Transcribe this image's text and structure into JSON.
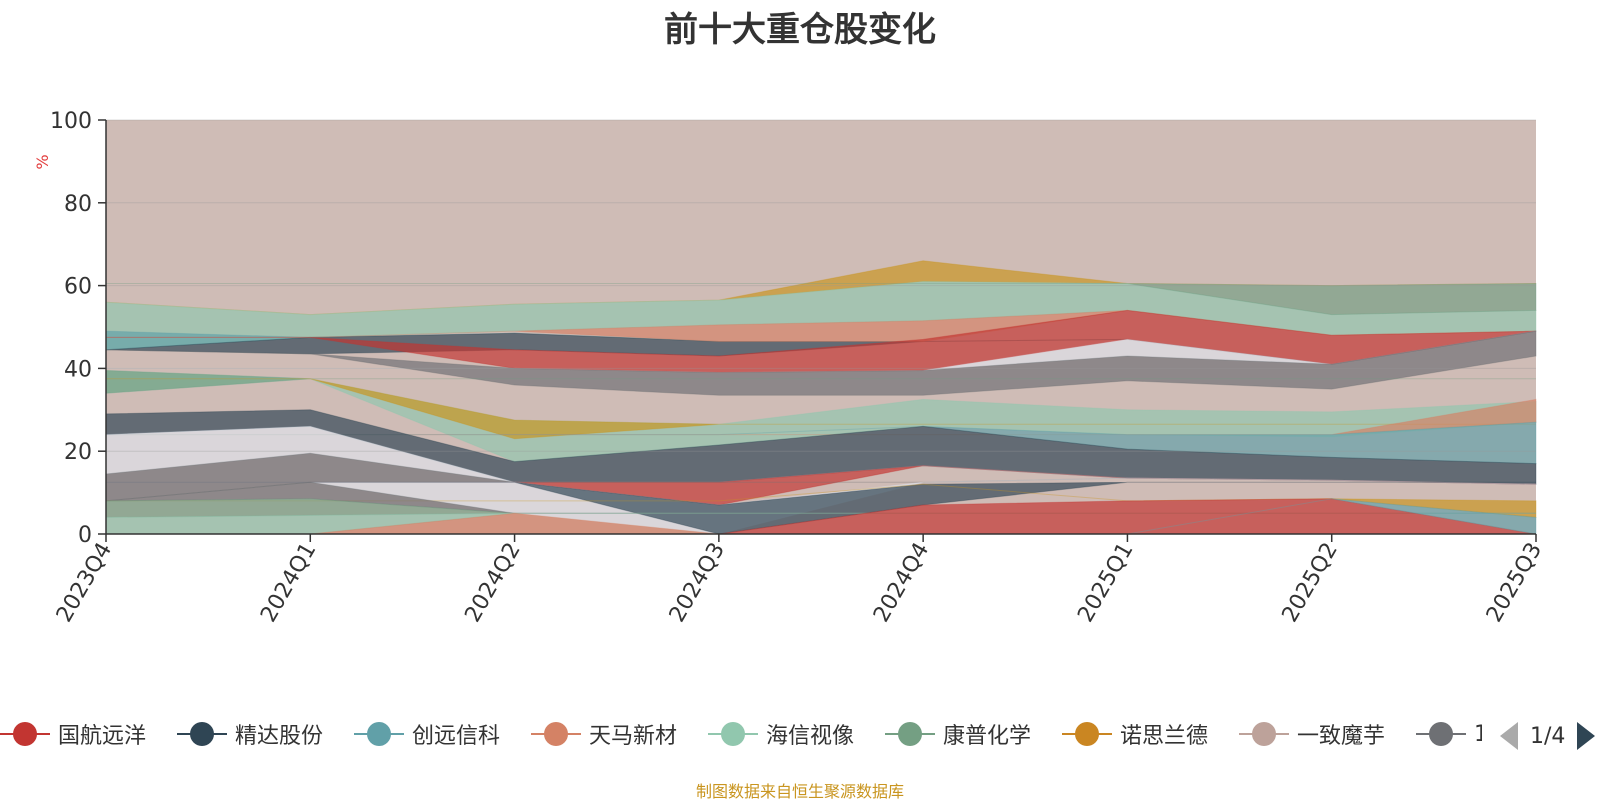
{
  "title": "前十大重仓股变化",
  "footer": "制图数据来自恒生聚源数据库",
  "legend_page": "1/4",
  "legend": [
    {
      "name": "国航远洋",
      "color": "#c23531"
    },
    {
      "name": "精达股份",
      "color": "#2f4554"
    },
    {
      "name": "创远信科",
      "color": "#61a0a8"
    },
    {
      "name": "天马新材",
      "color": "#d48265"
    },
    {
      "name": "海信视像",
      "color": "#91c7ae"
    },
    {
      "name": "康普化学",
      "color": "#749f83"
    },
    {
      "name": "诺思兰德",
      "color": "#ca8622"
    },
    {
      "name": "一致魔芋",
      "color": "#bda29a"
    },
    {
      "name": "1",
      "color": "#6e7074"
    }
  ],
  "chart_data": {
    "type": "area",
    "title": "前十大重仓股变化",
    "ylabel": "%",
    "ylim": [
      0,
      100
    ],
    "yticks": [
      0,
      20,
      40,
      60,
      80,
      100
    ],
    "categories": [
      "2023Q4",
      "2024Q1",
      "2024Q2",
      "2024Q3",
      "2024Q4",
      "2025Q1",
      "2025Q2",
      "2025Q3"
    ],
    "grid": true,
    "background_band": {
      "color": "#bda29a",
      "values": [
        100,
        100,
        100,
        100,
        100,
        100,
        100,
        100
      ]
    },
    "bands": [
      {
        "color": "#c9951f",
        "upper": [
          56,
          53,
          55.5,
          56.5,
          66,
          60.5,
          60,
          60.5
        ],
        "lower": [
          56,
          53,
          55.5,
          56.5,
          61,
          60.5,
          60,
          60.5
        ]
      },
      {
        "color": "#91c7ae",
        "upper": [
          56,
          53,
          55.5,
          56.5,
          61,
          60.5,
          53,
          54
        ],
        "lower": [
          44.5,
          47.5,
          49,
          50.5,
          51.5,
          54,
          48,
          49
        ]
      },
      {
        "color": "#749f83",
        "upper": [
          60.5,
          60.5,
          60.5,
          60.5,
          60.5,
          60.5,
          60,
          60.5
        ],
        "lower": [
          60.5,
          60.5,
          60.5,
          60.5,
          60.5,
          60.5,
          53,
          54
        ]
      },
      {
        "color": "#61a0a8",
        "upper": [
          49,
          47.5,
          48.5,
          46.5,
          46.5,
          47,
          41,
          49
        ],
        "lower": [
          44.5,
          47.5,
          48.5,
          46.5,
          46.5,
          47,
          41,
          49
        ]
      },
      {
        "color": "#2f4554",
        "upper": [
          44.5,
          47.5,
          48.5,
          46.5,
          46.5,
          47,
          41,
          49
        ],
        "lower": [
          44.5,
          43.5,
          44.5,
          43,
          46.5,
          47,
          41,
          49
        ]
      },
      {
        "color": "#d48265",
        "upper": [
          47.5,
          47.5,
          49,
          50.5,
          51.5,
          54,
          48,
          49
        ],
        "lower": [
          47.5,
          47.5,
          49,
          46.5,
          46.5,
          54,
          48,
          49
        ]
      },
      {
        "color": "#c23531",
        "upper": [
          47.5,
          47.5,
          44.5,
          43,
          47,
          54,
          48,
          49
        ],
        "lower": [
          47.5,
          47.5,
          40,
          39,
          39.5,
          47,
          41,
          49
        ]
      },
      {
        "color": "#dfe3ea",
        "upper": [
          40,
          40,
          40,
          39,
          39.5,
          47,
          41,
          49
        ],
        "lower": [
          40,
          40,
          40,
          39,
          39.5,
          43,
          41,
          49
        ]
      },
      {
        "color": "#6e7074",
        "upper": [
          44.5,
          43.5,
          40,
          39,
          39.5,
          43,
          41,
          49
        ],
        "lower": [
          44.5,
          43.5,
          36,
          33.5,
          33.5,
          37,
          35,
          43
        ]
      },
      {
        "color": "#91c7ae",
        "upper": [
          39.5,
          37.5,
          27.5,
          26.5,
          32.5,
          30,
          29.5,
          32
        ],
        "lower": [
          34,
          37.5,
          17.5,
          21.5,
          26,
          24,
          23.5,
          27
        ]
      },
      {
        "color": "#749f83",
        "upper": [
          39.5,
          37.5,
          37.5,
          37.5,
          37.5,
          37.5,
          37.5,
          37.5
        ],
        "lower": [
          34,
          37.5,
          37.5,
          37.5,
          37.5,
          37.5,
          37.5,
          37.5
        ]
      },
      {
        "color": "#c9951f",
        "upper": [
          37.5,
          37.5,
          27.5,
          26.5,
          26.5,
          26.5,
          26.5,
          26.5
        ],
        "lower": [
          37.5,
          37.5,
          23,
          26.5,
          26.5,
          26.5,
          26.5,
          26.5
        ]
      },
      {
        "color": "#d48265",
        "upper": [
          24,
          24,
          24,
          24,
          24,
          24,
          24,
          32.5
        ],
        "lower": [
          24,
          24,
          24,
          24,
          24,
          24,
          24,
          27
        ]
      },
      {
        "color": "#61a0a8",
        "upper": [
          24,
          24,
          24,
          24,
          26,
          24,
          24,
          27
        ],
        "lower": [
          24,
          24,
          24,
          24,
          26,
          20.5,
          18.5,
          17
        ]
      },
      {
        "color": "#2f4554",
        "upper": [
          29,
          30,
          17.5,
          21.5,
          26,
          20.5,
          18.5,
          17
        ],
        "lower": [
          24,
          26,
          12.5,
          12.5,
          16.5,
          13.5,
          13,
          12
        ]
      },
      {
        "color": "#dfe3ea",
        "upper": [
          24,
          26,
          12.5,
          12.5,
          16.5,
          13.5,
          13,
          12
        ],
        "lower": [
          14.5,
          19.5,
          12.5,
          12.5,
          16.5,
          13.5,
          13,
          12
        ]
      },
      {
        "color": "#c23531",
        "upper": [
          12.5,
          12.5,
          12.5,
          12.5,
          16.5,
          13.5,
          13,
          12
        ],
        "lower": [
          12.5,
          12.5,
          12.5,
          7,
          16.5,
          13.5,
          13,
          12
        ]
      },
      {
        "color": "#6e7074",
        "upper": [
          14.5,
          19.5,
          12.5,
          12.5,
          12.5,
          13.5,
          13,
          12
        ],
        "lower": [
          8,
          12.5,
          12.5,
          12.5,
          12.5,
          13.5,
          13,
          12
        ]
      },
      {
        "color": "#dfe3ea",
        "upper": [
          12.5,
          12.5,
          12.5,
          7,
          12.5,
          13.5,
          13,
          12
        ],
        "lower": [
          12.5,
          12.5,
          5,
          0,
          12.5,
          13.5,
          13,
          12
        ]
      },
      {
        "color": "#2f4554",
        "upper": [
          12.5,
          12.5,
          12.5,
          7,
          12,
          12.5,
          12.5,
          12.5
        ],
        "lower": [
          12.5,
          12.5,
          12.5,
          0,
          7,
          12.5,
          12.5,
          12.5
        ]
      },
      {
        "color": "#c9951f",
        "upper": [
          8,
          8,
          8,
          8,
          12,
          8,
          8.5,
          8
        ],
        "lower": [
          8,
          8,
          8,
          8,
          12,
          8,
          8.5,
          4
        ]
      },
      {
        "color": "#6e7074",
        "upper": [
          8,
          12.5,
          5,
          5,
          5,
          5,
          5,
          5
        ],
        "lower": [
          8,
          8.5,
          5,
          5,
          5,
          5,
          5,
          5
        ]
      },
      {
        "color": "#749f83",
        "upper": [
          8,
          8.5,
          5,
          5,
          5,
          5,
          5,
          5
        ],
        "lower": [
          4,
          4.5,
          5,
          5,
          5,
          5,
          5,
          5
        ]
      },
      {
        "color": "#91c7ae",
        "upper": [
          4,
          4.5,
          5,
          5,
          5,
          5,
          5,
          5
        ],
        "lower": [
          0,
          0,
          5,
          5,
          5,
          5,
          5,
          5
        ]
      },
      {
        "color": "#d48265",
        "upper": [
          0,
          0,
          5,
          0,
          0,
          0,
          0,
          0
        ],
        "lower": [
          0,
          0,
          0,
          0,
          0,
          0,
          0,
          0
        ]
      },
      {
        "color": "#c23531",
        "upper": [
          0,
          0,
          0,
          0,
          7,
          8,
          8.5,
          0
        ],
        "lower": [
          0,
          0,
          0,
          0,
          0,
          0,
          0,
          0
        ]
      },
      {
        "color": "#61a0a8",
        "upper": [
          0,
          0,
          0,
          0,
          0,
          0,
          8.5,
          4
        ],
        "lower": [
          0,
          0,
          0,
          0,
          0,
          0,
          8.5,
          0
        ]
      }
    ]
  }
}
